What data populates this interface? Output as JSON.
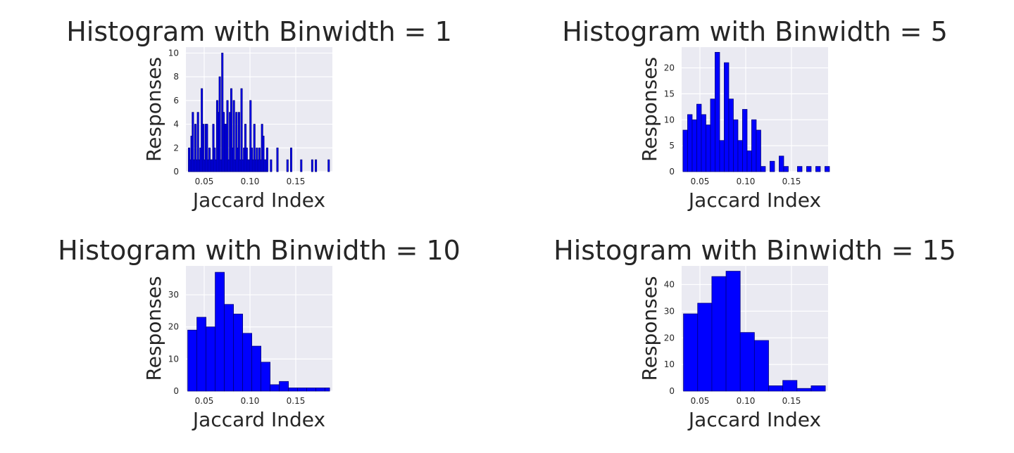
{
  "chart_data": [
    {
      "type": "bar",
      "title": "Histogram with Binwidth = 1",
      "xlabel": "Jaccard Index",
      "ylabel": "Responses",
      "xlim": [
        0.03,
        0.19
      ],
      "ylim": [
        0,
        10.5
      ],
      "xticks": [
        0.05,
        0.1,
        0.15
      ],
      "xtick_labels": [
        "0.05",
        "0.10",
        "0.15"
      ],
      "yticks": [
        0,
        2,
        4,
        6,
        8,
        10
      ],
      "ytick_labels": [
        "0",
        "2",
        "4",
        "6",
        "8",
        "10"
      ],
      "grid": true,
      "bar_color": "#0000ff",
      "edge_color": "#000080",
      "bins": [
        {
          "x": 0.0335,
          "count": 2
        },
        {
          "x": 0.0348,
          "count": 1
        },
        {
          "x": 0.0362,
          "count": 3
        },
        {
          "x": 0.0376,
          "count": 5
        },
        {
          "x": 0.039,
          "count": 1
        },
        {
          "x": 0.0404,
          "count": 4
        },
        {
          "x": 0.0418,
          "count": 1
        },
        {
          "x": 0.0432,
          "count": 5
        },
        {
          "x": 0.0446,
          "count": 1
        },
        {
          "x": 0.046,
          "count": 2
        },
        {
          "x": 0.0474,
          "count": 7
        },
        {
          "x": 0.0488,
          "count": 4
        },
        {
          "x": 0.0502,
          "count": 1
        },
        {
          "x": 0.0516,
          "count": 4
        },
        {
          "x": 0.053,
          "count": 4
        },
        {
          "x": 0.0544,
          "count": 1
        },
        {
          "x": 0.0558,
          "count": 2
        },
        {
          "x": 0.0572,
          "count": 1
        },
        {
          "x": 0.0586,
          "count": 1
        },
        {
          "x": 0.06,
          "count": 4
        },
        {
          "x": 0.0614,
          "count": 2
        },
        {
          "x": 0.0628,
          "count": 1
        },
        {
          "x": 0.0642,
          "count": 6
        },
        {
          "x": 0.0656,
          "count": 5
        },
        {
          "x": 0.067,
          "count": 8
        },
        {
          "x": 0.0684,
          "count": 1
        },
        {
          "x": 0.0698,
          "count": 10
        },
        {
          "x": 0.0712,
          "count": 5
        },
        {
          "x": 0.0726,
          "count": 4
        },
        {
          "x": 0.074,
          "count": 4
        },
        {
          "x": 0.0754,
          "count": 6
        },
        {
          "x": 0.0768,
          "count": 1
        },
        {
          "x": 0.0782,
          "count": 5
        },
        {
          "x": 0.0796,
          "count": 7
        },
        {
          "x": 0.081,
          "count": 2
        },
        {
          "x": 0.0824,
          "count": 6
        },
        {
          "x": 0.0838,
          "count": 1
        },
        {
          "x": 0.0852,
          "count": 5
        },
        {
          "x": 0.0866,
          "count": 2
        },
        {
          "x": 0.088,
          "count": 5
        },
        {
          "x": 0.0894,
          "count": 1
        },
        {
          "x": 0.0908,
          "count": 7
        },
        {
          "x": 0.0922,
          "count": 1
        },
        {
          "x": 0.0936,
          "count": 2
        },
        {
          "x": 0.095,
          "count": 4
        },
        {
          "x": 0.0964,
          "count": 2
        },
        {
          "x": 0.0978,
          "count": 1
        },
        {
          "x": 0.0992,
          "count": 1
        },
        {
          "x": 0.1006,
          "count": 6
        },
        {
          "x": 0.102,
          "count": 2
        },
        {
          "x": 0.1034,
          "count": 1
        },
        {
          "x": 0.1048,
          "count": 4
        },
        {
          "x": 0.1062,
          "count": 1
        },
        {
          "x": 0.1076,
          "count": 2
        },
        {
          "x": 0.109,
          "count": 1
        },
        {
          "x": 0.1104,
          "count": 2
        },
        {
          "x": 0.1118,
          "count": 1
        },
        {
          "x": 0.1132,
          "count": 4
        },
        {
          "x": 0.1146,
          "count": 3
        },
        {
          "x": 0.116,
          "count": 1
        },
        {
          "x": 0.1174,
          "count": 1
        },
        {
          "x": 0.1188,
          "count": 2
        },
        {
          "x": 0.123,
          "count": 1
        },
        {
          "x": 0.13,
          "count": 2
        },
        {
          "x": 0.141,
          "count": 1
        },
        {
          "x": 0.145,
          "count": 2
        },
        {
          "x": 0.156,
          "count": 1
        },
        {
          "x": 0.168,
          "count": 1
        },
        {
          "x": 0.172,
          "count": 1
        },
        {
          "x": 0.186,
          "count": 1
        }
      ]
    },
    {
      "type": "bar",
      "title": "Histogram with Binwidth = 5",
      "xlabel": "Jaccard Index",
      "ylabel": "Responses",
      "xlim": [
        0.03,
        0.19
      ],
      "ylim": [
        0,
        24
      ],
      "xticks": [
        0.05,
        0.1,
        0.15
      ],
      "xtick_labels": [
        "0.05",
        "0.10",
        "0.15"
      ],
      "yticks": [
        0,
        5,
        10,
        15,
        20
      ],
      "ytick_labels": [
        "0",
        "5",
        "10",
        "15",
        "20"
      ],
      "grid": true,
      "bar_color": "#0000ff",
      "edge_color": "#000080",
      "bins": [
        {
          "x0": 0.0315,
          "x1": 0.0365,
          "count": 8
        },
        {
          "x0": 0.0365,
          "x1": 0.0415,
          "count": 11
        },
        {
          "x0": 0.0415,
          "x1": 0.0465,
          "count": 10
        },
        {
          "x0": 0.0465,
          "x1": 0.0515,
          "count": 13
        },
        {
          "x0": 0.0515,
          "x1": 0.0565,
          "count": 11
        },
        {
          "x0": 0.0565,
          "x1": 0.0615,
          "count": 9
        },
        {
          "x0": 0.0615,
          "x1": 0.0665,
          "count": 14
        },
        {
          "x0": 0.0665,
          "x1": 0.0715,
          "count": 23
        },
        {
          "x0": 0.0715,
          "x1": 0.0765,
          "count": 6
        },
        {
          "x0": 0.0765,
          "x1": 0.0815,
          "count": 21
        },
        {
          "x0": 0.0815,
          "x1": 0.0865,
          "count": 14
        },
        {
          "x0": 0.0865,
          "x1": 0.0915,
          "count": 10
        },
        {
          "x0": 0.0915,
          "x1": 0.0965,
          "count": 6
        },
        {
          "x0": 0.0965,
          "x1": 0.1015,
          "count": 12
        },
        {
          "x0": 0.1015,
          "x1": 0.1065,
          "count": 4
        },
        {
          "x0": 0.1065,
          "x1": 0.1115,
          "count": 10
        },
        {
          "x0": 0.1115,
          "x1": 0.1165,
          "count": 8
        },
        {
          "x0": 0.1165,
          "x1": 0.1215,
          "count": 1
        },
        {
          "x0": 0.1215,
          "x1": 0.1265,
          "count": 0
        },
        {
          "x0": 0.1265,
          "x1": 0.1315,
          "count": 2
        },
        {
          "x0": 0.1315,
          "x1": 0.1365,
          "count": 0
        },
        {
          "x0": 0.1365,
          "x1": 0.1415,
          "count": 3
        },
        {
          "x0": 0.1415,
          "x1": 0.1465,
          "count": 1
        },
        {
          "x0": 0.1465,
          "x1": 0.1515,
          "count": 0
        },
        {
          "x0": 0.1515,
          "x1": 0.1565,
          "count": 0
        },
        {
          "x0": 0.1565,
          "x1": 0.1615,
          "count": 1
        },
        {
          "x0": 0.1615,
          "x1": 0.1665,
          "count": 0
        },
        {
          "x0": 0.1665,
          "x1": 0.1715,
          "count": 1
        },
        {
          "x0": 0.1715,
          "x1": 0.1765,
          "count": 0
        },
        {
          "x0": 0.1765,
          "x1": 0.1815,
          "count": 1
        },
        {
          "x0": 0.1815,
          "x1": 0.1865,
          "count": 0
        },
        {
          "x0": 0.1865,
          "x1": 0.1915,
          "count": 1
        }
      ]
    },
    {
      "type": "bar",
      "title": "Histogram with Binwidth = 10",
      "xlabel": "Jaccard Index",
      "ylabel": "Responses",
      "xlim": [
        0.03,
        0.19
      ],
      "ylim": [
        0,
        39
      ],
      "xticks": [
        0.05,
        0.1,
        0.15
      ],
      "xtick_labels": [
        "0.05",
        "0.10",
        "0.15"
      ],
      "yticks": [
        0,
        10,
        20,
        30
      ],
      "ytick_labels": [
        "0",
        "10",
        "20",
        "30"
      ],
      "grid": true,
      "bar_color": "#0000ff",
      "edge_color": "#000080",
      "bins": [
        {
          "x0": 0.032,
          "x1": 0.042,
          "count": 19
        },
        {
          "x0": 0.042,
          "x1": 0.052,
          "count": 23
        },
        {
          "x0": 0.052,
          "x1": 0.062,
          "count": 20
        },
        {
          "x0": 0.062,
          "x1": 0.072,
          "count": 37
        },
        {
          "x0": 0.072,
          "x1": 0.082,
          "count": 27
        },
        {
          "x0": 0.082,
          "x1": 0.092,
          "count": 24
        },
        {
          "x0": 0.092,
          "x1": 0.102,
          "count": 18
        },
        {
          "x0": 0.102,
          "x1": 0.112,
          "count": 14
        },
        {
          "x0": 0.112,
          "x1": 0.122,
          "count": 9
        },
        {
          "x0": 0.122,
          "x1": 0.132,
          "count": 2
        },
        {
          "x0": 0.132,
          "x1": 0.142,
          "count": 3
        },
        {
          "x0": 0.142,
          "x1": 0.152,
          "count": 1
        },
        {
          "x0": 0.152,
          "x1": 0.162,
          "count": 1
        },
        {
          "x0": 0.162,
          "x1": 0.172,
          "count": 1
        },
        {
          "x0": 0.172,
          "x1": 0.182,
          "count": 1
        },
        {
          "x0": 0.182,
          "x1": 0.187,
          "count": 1
        }
      ]
    },
    {
      "type": "bar",
      "title": "Histogram with Binwidth = 15",
      "xlabel": "Jaccard Index",
      "ylabel": "Responses",
      "xlim": [
        0.03,
        0.19
      ],
      "ylim": [
        0,
        47
      ],
      "xticks": [
        0.05,
        0.1,
        0.15
      ],
      "xtick_labels": [
        "0.05",
        "0.10",
        "0.15"
      ],
      "yticks": [
        0,
        10,
        20,
        30,
        40
      ],
      "ytick_labels": [
        "0",
        "10",
        "20",
        "30",
        "40"
      ],
      "grid": true,
      "bar_color": "#0000ff",
      "edge_color": "#000080",
      "bins": [
        {
          "x0": 0.032,
          "x1": 0.0475,
          "count": 29
        },
        {
          "x0": 0.0475,
          "x1": 0.063,
          "count": 33
        },
        {
          "x0": 0.063,
          "x1": 0.0785,
          "count": 43
        },
        {
          "x0": 0.0785,
          "x1": 0.094,
          "count": 45
        },
        {
          "x0": 0.094,
          "x1": 0.1095,
          "count": 22
        },
        {
          "x0": 0.1095,
          "x1": 0.125,
          "count": 19
        },
        {
          "x0": 0.125,
          "x1": 0.1405,
          "count": 2
        },
        {
          "x0": 0.1405,
          "x1": 0.156,
          "count": 4
        },
        {
          "x0": 0.156,
          "x1": 0.1715,
          "count": 1
        },
        {
          "x0": 0.1715,
          "x1": 0.187,
          "count": 2
        }
      ]
    }
  ]
}
